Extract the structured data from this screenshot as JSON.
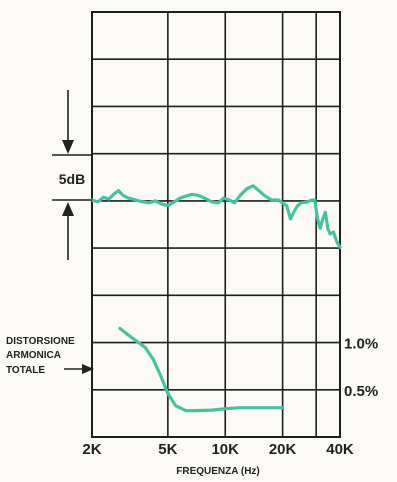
{
  "chart_data": {
    "type": "line",
    "title": "",
    "xlabel": "FREQUENZA (Hz)",
    "x_scale": "log",
    "xlim": [
      2000,
      40000
    ],
    "x_ticks": [
      {
        "value": 2000,
        "label": "2K"
      },
      {
        "value": 5000,
        "label": "5K"
      },
      {
        "value": 10000,
        "label": "10K"
      },
      {
        "value": 20000,
        "label": "20K"
      },
      {
        "value": 40000,
        "label": "40K"
      }
    ],
    "grid": true,
    "scale_marker": {
      "label": "5dB"
    },
    "thd_axis": {
      "label_lines": [
        "DISTORSIONE",
        "ARMONICA",
        "TOTALE"
      ],
      "ticks": [
        {
          "value": 1.0,
          "label": "1.0%"
        },
        {
          "value": 0.5,
          "label": "0.5%"
        }
      ],
      "ylim": [
        0.0,
        1.5
      ]
    },
    "series": [
      {
        "key": "frequency_response",
        "unit": "dB",
        "ylim": [
          -12,
          13
        ],
        "color": "#45c3a1",
        "points": [
          [
            2000,
            0.0
          ],
          [
            2150,
            -0.2
          ],
          [
            2300,
            0.3
          ],
          [
            2450,
            0.1
          ],
          [
            2600,
            0.6
          ],
          [
            2750,
            1.0
          ],
          [
            2900,
            0.5
          ],
          [
            3100,
            0.2
          ],
          [
            3400,
            0.0
          ],
          [
            3700,
            -0.2
          ],
          [
            4000,
            -0.3
          ],
          [
            4300,
            -0.1
          ],
          [
            4600,
            -0.4
          ],
          [
            5000,
            -0.6
          ],
          [
            5400,
            -0.2
          ],
          [
            5800,
            0.2
          ],
          [
            6200,
            0.4
          ],
          [
            6700,
            0.6
          ],
          [
            7200,
            0.5
          ],
          [
            7800,
            0.2
          ],
          [
            8500,
            -0.2
          ],
          [
            9200,
            -0.3
          ],
          [
            9800,
            0.2
          ],
          [
            10500,
            0.0
          ],
          [
            11200,
            -0.3
          ],
          [
            12000,
            0.5
          ],
          [
            13000,
            1.2
          ],
          [
            14000,
            1.5
          ],
          [
            15000,
            1.0
          ],
          [
            16000,
            0.5
          ],
          [
            17500,
            0.0
          ],
          [
            19000,
            0.0
          ],
          [
            20000,
            -0.3
          ],
          [
            21000,
            -0.6
          ],
          [
            22000,
            -2.0
          ],
          [
            23000,
            -1.2
          ],
          [
            24000,
            -0.6
          ],
          [
            25000,
            -0.3
          ],
          [
            27000,
            -0.2
          ],
          [
            28500,
            0.0
          ],
          [
            29500,
            0.0
          ],
          [
            30500,
            -2.0
          ],
          [
            31500,
            -3.0
          ],
          [
            32500,
            -2.0
          ],
          [
            33500,
            -1.3
          ],
          [
            34500,
            -3.0
          ],
          [
            35500,
            -3.6
          ],
          [
            37000,
            -3.4
          ],
          [
            38500,
            -4.4
          ],
          [
            40000,
            -5.0
          ]
        ]
      },
      {
        "key": "total_harmonic_distortion",
        "unit": "%",
        "color": "#45c3a1",
        "points": [
          [
            2800,
            1.15
          ],
          [
            3100,
            1.08
          ],
          [
            3400,
            1.02
          ],
          [
            3800,
            0.95
          ],
          [
            4200,
            0.82
          ],
          [
            4600,
            0.64
          ],
          [
            5000,
            0.46
          ],
          [
            5500,
            0.33
          ],
          [
            6200,
            0.28
          ],
          [
            7000,
            0.28
          ],
          [
            8500,
            0.285
          ],
          [
            10000,
            0.3
          ],
          [
            12000,
            0.31
          ],
          [
            14000,
            0.31
          ],
          [
            17000,
            0.31
          ],
          [
            20000,
            0.31
          ]
        ]
      }
    ]
  }
}
